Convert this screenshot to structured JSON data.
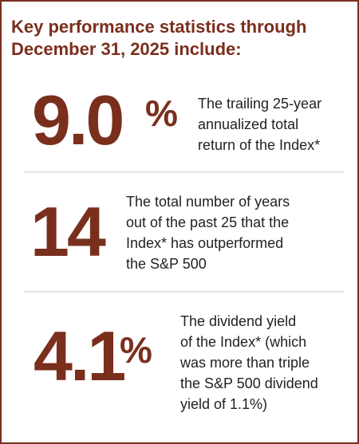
{
  "header": {
    "title_lines": [
      "Key performance statistics through",
      "December 31, 2025 include:"
    ]
  },
  "stats": [
    {
      "value": "9.0",
      "suffix": "%",
      "description_lines": [
        "The trailing 25-year",
        "annualized total",
        "return of the Index*"
      ]
    },
    {
      "value": "14",
      "description_lines": [
        "The total number of years",
        "out of the past 25 that the",
        "Index* has outperformed",
        "the S&P 500"
      ]
    },
    {
      "value": "4.1",
      "suffix": "%",
      "description_lines": [
        "The dividend yield",
        "of the Index* (which",
        "was more than triple",
        "the S&P 500 dividend",
        "yield of 1.1%)"
      ]
    }
  ]
}
